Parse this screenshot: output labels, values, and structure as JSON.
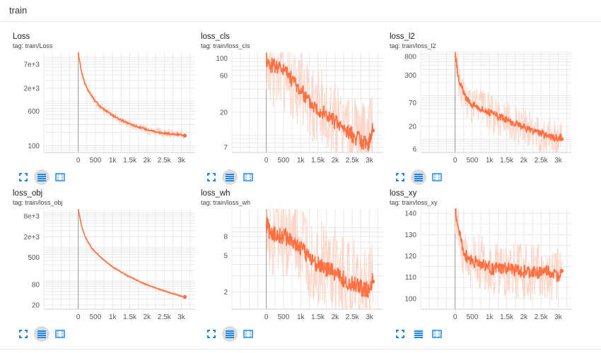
{
  "section": {
    "title": "train"
  },
  "colors": {
    "line": "#ff7043",
    "band": "#fbd2c2",
    "grid": "#e4e4e4",
    "axis": "#999999",
    "tool": "#1e88e5"
  },
  "tools": [
    "fit-domain-icon",
    "log-scale-icon",
    "download-icon"
  ],
  "chart_data": [
    {
      "type": "line",
      "title": "Loss",
      "tag": "tag: train/Loss",
      "yscale": "log",
      "ylim": [
        70,
        13000
      ],
      "xlim": [
        -1000,
        3400
      ],
      "xticks": [
        "0",
        "500",
        "1k",
        "1.5k",
        "2k",
        "2.5k",
        "3k"
      ],
      "xtick_values": [
        0,
        500,
        1000,
        1500,
        2000,
        2500,
        3000
      ],
      "yticks": [
        "7e+3",
        "2e+3",
        "600",
        "100"
      ],
      "ytick_values": [
        7000,
        2000,
        600,
        100
      ],
      "series": [
        {
          "x": [
            0,
            100,
            200,
            300,
            500,
            700,
            1000,
            1300,
            1600,
            2000,
            2400,
            2800,
            3100
          ],
          "values": [
            13000,
            4500,
            2500,
            1700,
            1000,
            700,
            480,
            360,
            290,
            230,
            195,
            180,
            175
          ]
        }
      ]
    },
    {
      "type": "line",
      "title": "loss_cls",
      "tag": "tag: train/loss_cls",
      "yscale": "log",
      "ylim": [
        6,
        120
      ],
      "xlim": [
        -1000,
        3400
      ],
      "xticks": [
        "0",
        "500",
        "1k",
        "1.5k",
        "2k",
        "2.5k",
        "3k"
      ],
      "xtick_values": [
        0,
        500,
        1000,
        1500,
        2000,
        2500,
        3000
      ],
      "yticks": [
        "100",
        "60",
        "20",
        "7"
      ],
      "ytick_values": [
        100,
        60,
        20,
        7
      ],
      "series": [
        {
          "x": [
            0,
            100,
            300,
            500,
            800,
            1000,
            1300,
            1600,
            2000,
            2400,
            2800,
            3000,
            3100
          ],
          "values": [
            100,
            82,
            80,
            72,
            50,
            38,
            26,
            21,
            15,
            11,
            8,
            8,
            14
          ]
        }
      ]
    },
    {
      "type": "line",
      "title": "loss_l2",
      "tag": "tag: train/loss_l2",
      "yscale": "log",
      "ylim": [
        5,
        1000
      ],
      "xlim": [
        -1000,
        3400
      ],
      "xticks": [
        "0",
        "500",
        "1k",
        "1.5k",
        "2k",
        "2.5k",
        "3k"
      ],
      "xtick_values": [
        0,
        500,
        1000,
        1500,
        2000,
        2500,
        3000
      ],
      "yticks": [
        "800",
        "300",
        "70",
        "20",
        "6"
      ],
      "ytick_values": [
        800,
        300,
        70,
        20,
        6
      ],
      "series": [
        {
          "x": [
            0,
            100,
            300,
            500,
            800,
            1100,
            1500,
            1900,
            2300,
            2700,
            3000,
            3100
          ],
          "values": [
            1000,
            250,
            90,
            65,
            50,
            38,
            28,
            20,
            15,
            12,
            10,
            12
          ]
        }
      ]
    },
    {
      "type": "line",
      "title": "loss_obj",
      "tag": "tag: train/loss_obj",
      "yscale": "log",
      "ylim": [
        15,
        13000
      ],
      "xlim": [
        -1000,
        3400
      ],
      "xticks": [
        "0",
        "500",
        "1k",
        "1.5k",
        "2k",
        "2.5k",
        "3k"
      ],
      "xtick_values": [
        0,
        500,
        1000,
        1500,
        2000,
        2500,
        3000
      ],
      "yticks": [
        "8e+3",
        "2e+3",
        "500",
        "80",
        "20"
      ],
      "ytick_values": [
        8000,
        2000,
        500,
        80,
        20
      ],
      "series": [
        {
          "x": [
            0,
            100,
            200,
            400,
            700,
            1000,
            1400,
            1800,
            2200,
            2600,
            3000,
            3100
          ],
          "values": [
            13000,
            4000,
            2000,
            900,
            450,
            260,
            150,
            95,
            65,
            48,
            36,
            35
          ]
        }
      ]
    },
    {
      "type": "line",
      "title": "loss_wh",
      "tag": "tag: train/loss_wh",
      "yscale": "log",
      "ylim": [
        1.3,
        16
      ],
      "xlim": [
        -1000,
        3400
      ],
      "xticks": [
        "0",
        "500",
        "1k",
        "1.5k",
        "2k",
        "2.5k",
        "3k"
      ],
      "xtick_values": [
        0,
        500,
        1000,
        1500,
        2000,
        2500,
        3000
      ],
      "yticks": [
        "8",
        "5",
        "2"
      ],
      "ytick_values": [
        8,
        5,
        2
      ],
      "series": [
        {
          "x": [
            0,
            100,
            300,
            600,
            900,
            1200,
            1500,
            1800,
            2100,
            2400,
            2700,
            3000,
            3100
          ],
          "values": [
            11,
            9,
            8.5,
            8,
            6.5,
            5,
            4,
            3.5,
            3,
            2.6,
            2.3,
            2,
            3.2
          ]
        }
      ]
    },
    {
      "type": "line",
      "title": "loss_xy",
      "tag": "tag: train/loss_xy",
      "yscale": "linear",
      "ylim": [
        95,
        142
      ],
      "xlim": [
        -1000,
        3400
      ],
      "xticks": [
        "0",
        "500",
        "1k",
        "1.5k",
        "2k",
        "2.5k",
        "3k"
      ],
      "xtick_values": [
        0,
        500,
        1000,
        1500,
        2000,
        2500,
        3000
      ],
      "yticks": [
        "140",
        "130",
        "120",
        "110",
        "100"
      ],
      "ytick_values": [
        140,
        130,
        120,
        110,
        100
      ],
      "series": [
        {
          "x": [
            0,
            100,
            200,
            300,
            500,
            800,
            1100,
            1500,
            1900,
            2300,
            2700,
            3000,
            3100
          ],
          "values": [
            142,
            133,
            125,
            120,
            118,
            116,
            114,
            114,
            113,
            112,
            113,
            110,
            116
          ]
        }
      ]
    }
  ]
}
